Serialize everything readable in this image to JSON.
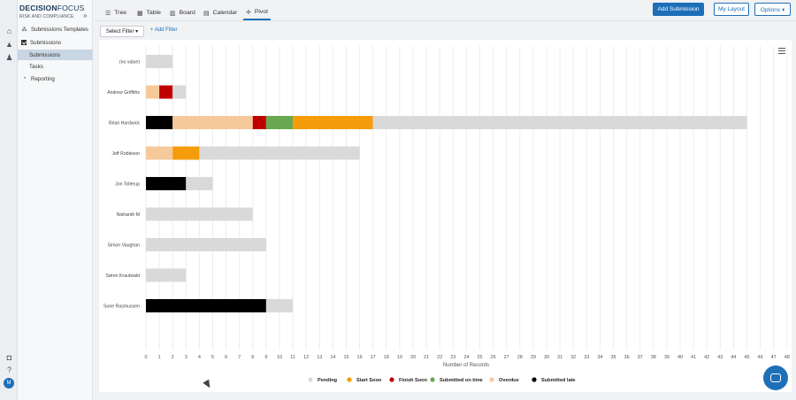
{
  "app": {
    "brand_bold": "DECISION",
    "brand_rest": "FOCUS",
    "workspace": "RISK AND COMPLIANCE"
  },
  "sidebar": {
    "items": [
      {
        "label": "Submissions Templates",
        "icon": "templates-icon"
      },
      {
        "label": "Submissions",
        "icon": "checkbox-icon"
      },
      {
        "label": "Submissions",
        "active": true
      },
      {
        "label": "Tasks"
      },
      {
        "label": "Reporting",
        "icon": "reporting-icon"
      }
    ]
  },
  "tabs": [
    {
      "label": "Tree",
      "icon": "tree-icon"
    },
    {
      "label": "Table",
      "icon": "table-icon"
    },
    {
      "label": "Board",
      "icon": "board-icon"
    },
    {
      "label": "Calendar",
      "icon": "calendar-icon"
    },
    {
      "label": "Pivot",
      "icon": "pivot-icon",
      "active": true
    }
  ],
  "buttons": {
    "add_submission": "Add Submission",
    "my_layout": "My Layout",
    "options": "Options ▾"
  },
  "filters": {
    "select_filter": "Select Filter ▾",
    "add_filter": "+ Add Filter"
  },
  "chart_data": {
    "type": "bar",
    "orientation": "horizontal",
    "stacked": true,
    "xlabel": "Number of Records",
    "xlim": [
      0,
      48
    ],
    "grid": true,
    "legend_position": "bottom",
    "categories": [
      "(no value)",
      "Andrew Griffiths",
      "Brian Hardwick",
      "Jeff Robleson",
      "Jon Tollerup",
      "Nishanth M",
      "Simon Vaughan",
      "Søren Krautwald",
      "Sune Rasmussen"
    ],
    "series_order_in_bars": [
      "Submitted late",
      "Overdue",
      "Finish Soon",
      "Submitted on time",
      "Start Soon",
      "Pending"
    ],
    "series": [
      {
        "name": "Pending",
        "color": "#d9d9d9",
        "values": [
          2,
          1,
          28,
          12,
          2,
          8,
          9,
          3,
          2
        ]
      },
      {
        "name": "Start Soon",
        "color": "#f59c0b",
        "values": [
          0,
          0,
          6,
          2,
          0,
          0,
          0,
          0,
          0
        ]
      },
      {
        "name": "Finish Soon",
        "color": "#c00000",
        "values": [
          0,
          1,
          1,
          0,
          0,
          0,
          0,
          0,
          0
        ]
      },
      {
        "name": "Submitted on time",
        "color": "#6aa84f",
        "values": [
          0,
          0,
          2,
          0,
          0,
          0,
          0,
          0,
          0
        ]
      },
      {
        "name": "Overdue",
        "color": "#f6c99a",
        "values": [
          0,
          1,
          6,
          2,
          0,
          0,
          0,
          0,
          0
        ]
      },
      {
        "name": "Submitted late",
        "color": "#000000",
        "values": [
          0,
          0,
          2,
          0,
          3,
          0,
          0,
          0,
          9
        ]
      }
    ],
    "legend": [
      {
        "name": "Pending",
        "color": "#d9d9d9"
      },
      {
        "name": "Start Soon",
        "color": "#f59c0b"
      },
      {
        "name": "Finish Soon",
        "color": "#c00000"
      },
      {
        "name": "Submitted on time",
        "color": "#6aa84f"
      },
      {
        "name": "Overdue",
        "color": "#f6c99a"
      },
      {
        "name": "Submitted late",
        "color": "#000000"
      }
    ]
  },
  "user": {
    "initials": "M"
  }
}
